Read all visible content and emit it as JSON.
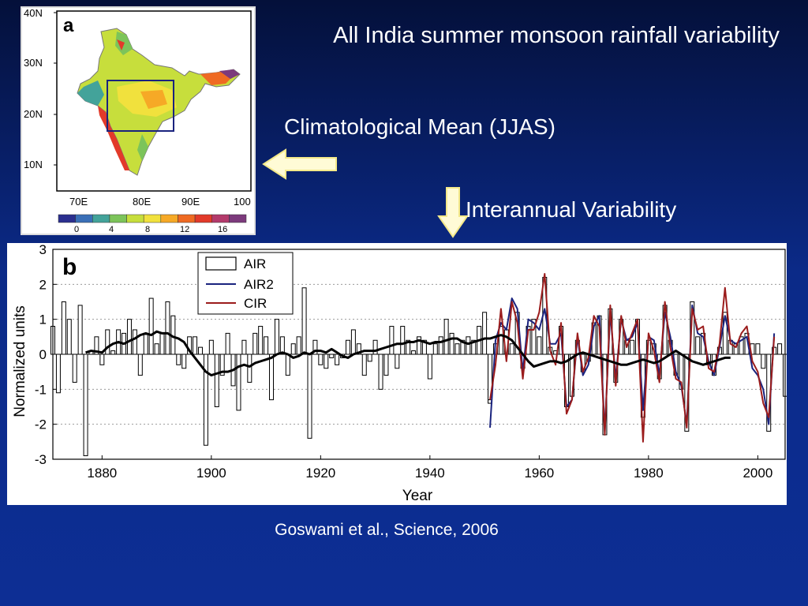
{
  "slide": {
    "title": "All India summer monsoon rainfall variability",
    "climatology_label": "Climatological Mean (JJAS)",
    "variability_label": "Interannual Variability",
    "citation": "Goswami et al., Science, 2006"
  },
  "map_panel": {
    "panel_letter": "a",
    "lat_labels": [
      "40N",
      "30N",
      "20N",
      "10N"
    ],
    "lon_labels": [
      "70E",
      "80E",
      "90E",
      "100"
    ],
    "colorbar_ticks": [
      "0",
      "4",
      "8",
      "12",
      "16"
    ],
    "colorbar_colors": [
      "#2b2f8f",
      "#3a6fb7",
      "#43a39a",
      "#7cc45a",
      "#c7de3c",
      "#f1e13d",
      "#f6a926",
      "#ef6a22",
      "#e23a2a",
      "#b33a6b",
      "#7c3a7c"
    ]
  },
  "colors": {
    "air": "#000000",
    "air2": "#1a237e",
    "cir": "#9b1c1c",
    "arrow_fill": "#fffbd6",
    "arrow_stroke": "#f4e98a"
  },
  "chart_data": {
    "type": "bar",
    "panel_letter": "b",
    "xlabel": "Year",
    "ylabel": "Normalized units",
    "xlim": [
      1871,
      2005
    ],
    "ylim": [
      -3,
      3
    ],
    "xticks": [
      1880,
      1900,
      1920,
      1940,
      1960,
      1980,
      2000
    ],
    "yticks": [
      3,
      2,
      1,
      0,
      -1,
      -2,
      -3
    ],
    "legend_position": "top-left",
    "series": [
      {
        "name": "AIR",
        "kind": "bar",
        "x_start": 1871,
        "values": [
          0.8,
          -1.1,
          1.5,
          1.0,
          -0.8,
          1.4,
          -2.9,
          0.1,
          0.5,
          -0.3,
          0.7,
          0.1,
          0.7,
          0.6,
          1.0,
          0.7,
          -0.6,
          0.6,
          1.6,
          0.3,
          0.6,
          1.5,
          1.1,
          -0.3,
          -0.4,
          0.5,
          0.5,
          0.2,
          -2.6,
          0.4,
          -1.5,
          -0.6,
          0.6,
          -0.9,
          -1.6,
          0.4,
          -0.8,
          0.6,
          0.8,
          0.5,
          -1.3,
          1.0,
          0.5,
          -0.6,
          0.3,
          0.5,
          1.9,
          -2.4,
          0.4,
          -0.3,
          -0.4,
          -0.1,
          -0.3,
          -0.1,
          0.4,
          0.7,
          0.3,
          -0.6,
          -0.2,
          0.4,
          -1.0,
          -0.6,
          0.8,
          -0.4,
          0.8,
          0.4,
          0.1,
          0.5,
          0.4,
          -0.7,
          0.3,
          0.5,
          1.0,
          0.6,
          0.3,
          0.4,
          0.5,
          0.4,
          0.8,
          1.2,
          -1.4
        ]
      },
      {
        "name": "AIR",
        "kind": "bar",
        "x_start": 1951,
        "values": [
          -1.3,
          0.3,
          0.8,
          0.7,
          0.3,
          1.2,
          -0.4,
          0.8,
          1.0,
          0.5,
          2.2,
          0.2,
          0.1,
          0.8,
          -1.5,
          -1.2,
          0.4,
          -0.5,
          -0.2,
          0.9,
          1.1,
          -2.3,
          1.3,
          -0.8,
          1.0,
          0.4,
          0.4,
          1.0,
          -1.8,
          0.4,
          0.3,
          -0.7,
          1.4,
          0.4,
          -0.6,
          -1.0,
          -2.2,
          1.5,
          0.5,
          0.6,
          -0.3,
          -0.6,
          0.2,
          1.2,
          0.4,
          0.3,
          0.5,
          0.6,
          0.3,
          0.3,
          -0.4,
          -2.2,
          0.2,
          0.3,
          -1.2
        ]
      },
      {
        "name": "AIR2",
        "kind": "line",
        "x_start": 1951,
        "values": [
          -2.1,
          0.4,
          0.9,
          0.7,
          1.6,
          1.3,
          -0.5,
          1.0,
          0.9,
          0.7,
          1.3,
          0.3,
          0.3,
          0.6,
          -1.5,
          -1.3,
          0.5,
          -0.6,
          -0.3,
          0.8,
          1.1,
          -2.2,
          1.2,
          -0.7,
          1.0,
          0.4,
          0.5,
          0.9,
          -1.6,
          0.5,
          0.4,
          -0.6,
          1.2,
          0.5,
          -0.5,
          -0.9,
          -2.0,
          1.4,
          0.6,
          0.5,
          -0.2,
          -0.6,
          0.2,
          1.1,
          0.4,
          0.3,
          0.4,
          0.5,
          -0.4,
          -0.6,
          -1.0,
          -2.0,
          0.6
        ]
      },
      {
        "name": "CIR",
        "kind": "line",
        "x_start": 1951,
        "values": [
          -1.3,
          -0.3,
          1.3,
          -0.2,
          1.5,
          0.9,
          -0.7,
          0.7,
          0.7,
          1.2,
          2.3,
          0.1,
          -0.3,
          0.9,
          -1.7,
          -1.3,
          0.6,
          -0.5,
          -0.1,
          1.1,
          0.8,
          -2.3,
          1.4,
          -0.9,
          1.1,
          0.2,
          0.6,
          1.0,
          -2.5,
          0.6,
          0.1,
          -0.8,
          1.5,
          0.2,
          -0.7,
          -0.8,
          -2.1,
          1.3,
          0.7,
          0.8,
          -0.4,
          -0.5,
          0.3,
          1.9,
          0.3,
          0.2,
          0.6,
          0.8,
          -0.2,
          -0.5,
          -1.4,
          -1.8,
          0.5
        ]
      },
      {
        "name": "",
        "kind": "smoothed-line",
        "x_start": 1877,
        "values": [
          0.05,
          0.1,
          0.08,
          0.05,
          0.2,
          0.3,
          0.35,
          0.3,
          0.38,
          0.45,
          0.55,
          0.6,
          0.55,
          0.65,
          0.6,
          0.6,
          0.5,
          0.45,
          0.35,
          0.1,
          -0.1,
          -0.3,
          -0.5,
          -0.6,
          -0.55,
          -0.5,
          -0.5,
          -0.45,
          -0.35,
          -0.3,
          -0.35,
          -0.25,
          -0.2,
          -0.15,
          -0.1,
          0.0,
          0.05,
          0.0,
          -0.1,
          -0.05,
          0.05,
          0.0,
          0.1,
          0.1,
          0.05,
          0.15,
          0.05,
          -0.05,
          -0.1,
          0.0,
          0.05,
          0.1,
          0.1,
          0.1,
          0.15,
          0.2,
          0.25,
          0.3,
          0.3,
          0.35,
          0.35,
          0.4,
          0.35,
          0.3,
          0.35,
          0.35,
          0.4,
          0.45,
          0.45,
          0.35,
          0.3,
          0.35,
          0.4,
          0.45,
          0.45,
          0.5,
          0.55,
          0.5,
          0.4,
          0.2,
          0.0,
          -0.2,
          -0.35,
          -0.3,
          -0.25,
          -0.2,
          -0.2,
          -0.25,
          -0.2,
          -0.1,
          0.0,
          0.05,
          0.0,
          -0.05,
          -0.1,
          -0.15,
          -0.2,
          -0.25,
          -0.3,
          -0.3,
          -0.25,
          -0.2,
          -0.15,
          -0.2,
          -0.25,
          -0.2,
          -0.1,
          0.0,
          0.1,
          0.0,
          -0.1,
          -0.2,
          -0.25,
          -0.3,
          -0.25,
          -0.2,
          -0.15,
          -0.1,
          -0.1
        ]
      }
    ]
  }
}
